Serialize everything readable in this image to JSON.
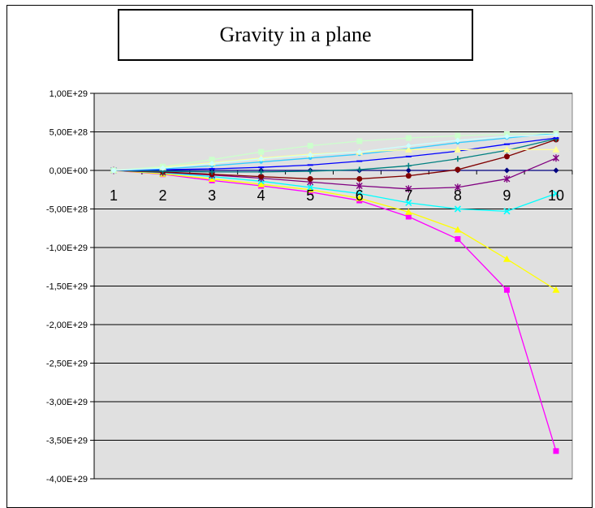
{
  "chart_data": {
    "type": "line",
    "title": "Gravity in a plane",
    "xlabel": "",
    "ylabel": "",
    "categories": [
      "1",
      "2",
      "3",
      "4",
      "5",
      "6",
      "7",
      "8",
      "9",
      "10"
    ],
    "ylim": [
      -4e+29,
      1e+29
    ],
    "ytick_values": [
      1e+29,
      5e+28,
      0,
      -5e+28,
      -1e+29,
      -1.5e+29,
      -2e+29,
      -2.5e+29,
      -3e+29,
      -3.5e+29,
      -4e+29
    ],
    "ytick_labels": [
      "1,00E+29",
      "5,00E+28",
      "0,00E+00",
      "-5,00E+28",
      "-1,00E+29",
      "-1,50E+29",
      "-2,00E+29",
      "-2,50E+29",
      "-3,00E+29",
      "-3,50E+29",
      "-4,00E+29"
    ],
    "grid": true,
    "background_color": "#e0e0e0",
    "series": [
      {
        "color": "#000080",
        "marker": "diamond",
        "values": [
          0,
          0,
          0,
          0,
          0,
          0,
          0,
          0,
          0,
          0
        ]
      },
      {
        "color": "#ff00ff",
        "marker": "square",
        "values": [
          0,
          -5e+27,
          -1.3e+28,
          -2e+28,
          -2.8e+28,
          -3.9e+28,
          -6e+28,
          -8.9e+28,
          -1.55e+29,
          -3.64e+29
        ]
      },
      {
        "color": "#ffff00",
        "marker": "triangle",
        "values": [
          0,
          -4.5e+27,
          -1.1e+28,
          -1.8e+28,
          -2.5e+28,
          -3.6e+28,
          -5.4e+28,
          -7.7e+28,
          -1.15e+29,
          -1.55e+29
        ]
      },
      {
        "color": "#00ffff",
        "marker": "x",
        "values": [
          0,
          -3e+27,
          -8e+27,
          -1.4e+28,
          -2.2e+28,
          -3e+28,
          -4.2e+28,
          -5e+28,
          -5.3e+28,
          -3e+28
        ]
      },
      {
        "color": "#800080",
        "marker": "star",
        "values": [
          0,
          -2.5e+27,
          -6e+27,
          -1e+28,
          -1.5e+28,
          -2e+28,
          -2.4e+28,
          -2.2e+28,
          -1.1e+28,
          1.6e+28
        ]
      },
      {
        "color": "#800000",
        "marker": "circle",
        "values": [
          0,
          -2e+27,
          -5e+27,
          -8e+27,
          -1.1e+28,
          -1.1e+28,
          -7e+27,
          1e+27,
          1.8e+28,
          4e+28
        ]
      },
      {
        "color": "#008080",
        "marker": "plus",
        "values": [
          0,
          -1e+27,
          -2e+27,
          -2e+27,
          -1e+27,
          1e+27,
          6e+27,
          1.5e+28,
          2.6e+28,
          4.1e+28
        ]
      },
      {
        "color": "#0000ff",
        "marker": "dash",
        "values": [
          0,
          1e+27,
          2e+27,
          4e+27,
          7e+27,
          1.2e+28,
          1.8e+28,
          2.5e+28,
          3.4e+28,
          4.2e+28
        ]
      },
      {
        "color": "#33ccff",
        "marker": "dot",
        "values": [
          0,
          2e+27,
          6e+27,
          1.1e+28,
          1.6e+28,
          2.1e+28,
          2.8e+28,
          3.6e+28,
          4.2e+28,
          4.8e+28
        ]
      },
      {
        "color": "#ffff99",
        "marker": "triangle",
        "values": [
          0,
          4e+27,
          1e+28,
          1.6e+28,
          2.1e+28,
          2.4e+28,
          2.7e+28,
          2.7e+28,
          2.7e+28,
          2.7e+28
        ]
      },
      {
        "color": "#ccffcc",
        "marker": "square",
        "values": [
          0,
          5e+27,
          1.4e+28,
          2.4e+28,
          3.2e+28,
          3.8e+28,
          4.2e+28,
          4.5e+28,
          4.7e+28,
          4.8e+28
        ]
      },
      {
        "color": "#ccffff",
        "marker": "diamond",
        "values": [
          0,
          3e+27,
          9e+27,
          1.5e+28,
          2e+28,
          2.4e+28,
          3.2e+28,
          3.9e+28,
          4.4e+28,
          4.6e+28
        ]
      }
    ]
  }
}
